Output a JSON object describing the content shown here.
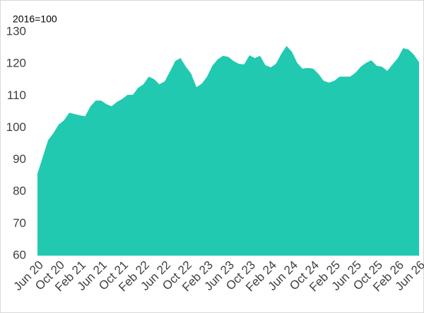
{
  "chart_data": {
    "type": "area",
    "annotation": "2016=100",
    "color": "#21c9b1",
    "categories": [
      "Jun 20",
      null,
      null,
      null,
      "Oct 20",
      null,
      null,
      null,
      "Feb 21",
      null,
      null,
      null,
      "Jun 21",
      null,
      null,
      null,
      "Oct 21",
      null,
      null,
      null,
      "Feb 22",
      null,
      null,
      null,
      "Jun 22",
      null,
      null,
      null,
      "Oct 22",
      null,
      null,
      null,
      "Feb 23",
      null,
      null,
      null,
      "Jun 23",
      null,
      null,
      null,
      "Oct 23",
      null,
      null,
      null,
      "Feb 24",
      null,
      null,
      null,
      "Jun 24",
      null,
      null,
      null,
      "Oct 24",
      null,
      null,
      null,
      "Feb 25",
      null,
      null,
      null,
      "Jun 25",
      null,
      null,
      null,
      "Oct 25",
      null,
      null,
      null,
      "Feb 26",
      null,
      null,
      null,
      "Jun 26"
    ],
    "values": [
      85.7,
      90.8,
      96.1,
      98.3,
      101,
      102.3,
      104.7,
      104.3,
      103.9,
      103.6,
      106.7,
      108.5,
      108.5,
      107.4,
      106.7,
      108.1,
      109,
      110.3,
      110.3,
      112.5,
      113.6,
      116,
      115.2,
      113.6,
      114.5,
      117.6,
      120.9,
      121.8,
      119.1,
      116.9,
      112.7,
      113.8,
      116,
      119.4,
      121.4,
      122.5,
      122.2,
      120.9,
      120,
      119.8,
      122.7,
      121.8,
      122.5,
      119.6,
      118.9,
      120,
      123.1,
      125.6,
      123.8,
      120.3,
      118.5,
      118.7,
      118.5,
      116.9,
      114.7,
      114.1,
      114.7,
      116,
      116,
      116,
      117.2,
      119.1,
      120.3,
      121.1,
      119.4,
      119.1,
      117.8,
      119.8,
      121.8,
      124.9,
      124.5,
      122.9,
      120.5
    ],
    "ylim": [
      60,
      130
    ],
    "yticks": [
      60,
      70,
      80,
      90,
      100,
      110,
      120,
      130
    ]
  }
}
